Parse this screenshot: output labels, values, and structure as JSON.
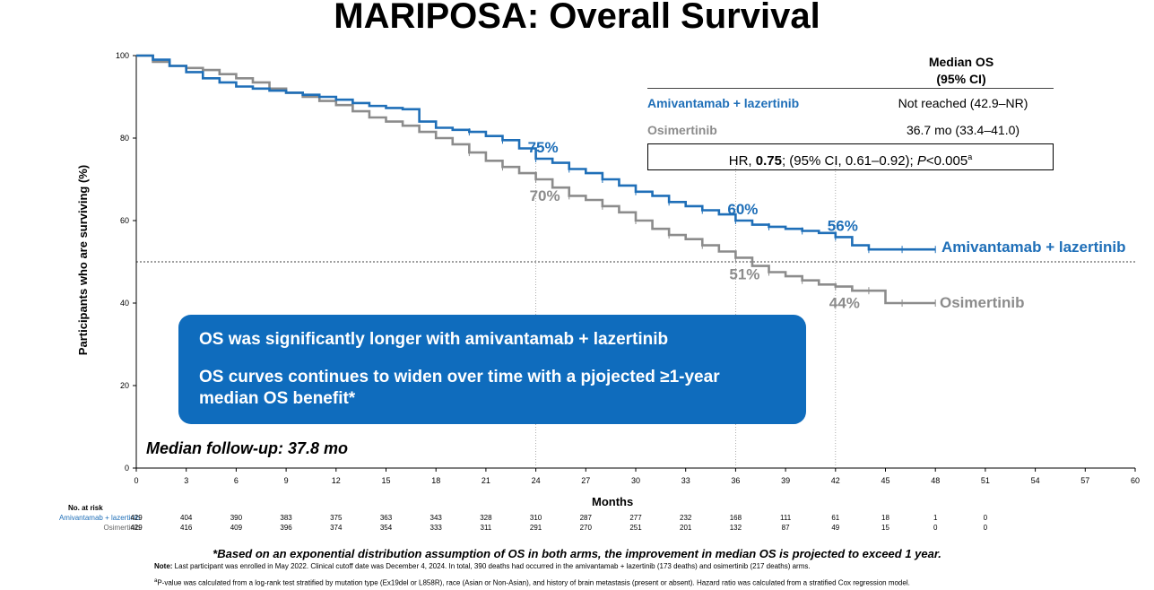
{
  "title": "MARIPOSA: Overall Survival",
  "chart_data": {
    "type": "line",
    "title": "MARIPOSA: Overall Survival",
    "xlabel": "Months",
    "ylabel": "Participants who are surviving (%)",
    "xlim": [
      0,
      60
    ],
    "ylim": [
      0,
      100
    ],
    "xticks": [
      0,
      3,
      6,
      9,
      12,
      15,
      18,
      21,
      24,
      27,
      30,
      33,
      36,
      39,
      42,
      45,
      48,
      51,
      54,
      57,
      60
    ],
    "yticks": [
      0,
      20,
      40,
      60,
      80,
      100
    ],
    "reference_line_y": 50,
    "guide_lines_x": [
      24,
      36,
      42
    ],
    "series": [
      {
        "name": "Amivantamab + lazertinib",
        "color": "#1f6fb8",
        "x": [
          0,
          1,
          2,
          3,
          4,
          5,
          6,
          7,
          8,
          9,
          10,
          11,
          12,
          13,
          14,
          15,
          16,
          17,
          18,
          19,
          20,
          21,
          22,
          23,
          24,
          25,
          26,
          27,
          28,
          29,
          30,
          31,
          32,
          33,
          34,
          35,
          36,
          37,
          38,
          39,
          40,
          41,
          42,
          43,
          44,
          45,
          46,
          47,
          48
        ],
        "y": [
          100,
          99,
          97.5,
          96,
          94.5,
          93.5,
          92.5,
          92,
          91.5,
          91,
          90.5,
          90,
          89.3,
          88.5,
          87.8,
          87.3,
          87,
          84,
          82.5,
          82,
          81.5,
          80.5,
          79.5,
          77.5,
          75,
          74,
          72.5,
          71.5,
          70,
          68.5,
          67,
          66,
          64.5,
          63.5,
          62.5,
          61.5,
          60,
          59,
          58.5,
          58,
          57.5,
          57,
          56,
          54,
          53,
          53,
          53,
          53,
          53
        ]
      },
      {
        "name": "Osimertinib",
        "color": "#8c8c8c",
        "x": [
          0,
          1,
          2,
          3,
          4,
          5,
          6,
          7,
          8,
          9,
          10,
          11,
          12,
          13,
          14,
          15,
          16,
          17,
          18,
          19,
          20,
          21,
          22,
          23,
          24,
          25,
          26,
          27,
          28,
          29,
          30,
          31,
          32,
          33,
          34,
          35,
          36,
          37,
          38,
          39,
          40,
          41,
          42,
          43,
          44,
          45,
          46,
          47,
          48
        ],
        "y": [
          100,
          98.5,
          97.5,
          97,
          96.5,
          95.5,
          94.5,
          93.5,
          92,
          91,
          90,
          89,
          88,
          86.5,
          85,
          84,
          83,
          81.5,
          80,
          78.5,
          76.5,
          74.5,
          73,
          71.5,
          70,
          68,
          66,
          65,
          63.5,
          62,
          60,
          58,
          56.5,
          55.5,
          54,
          52.5,
          51,
          49,
          47.5,
          46.5,
          45.5,
          44.5,
          44,
          43,
          43,
          40,
          40,
          40,
          40
        ]
      }
    ],
    "annotations": [
      {
        "text": "75%",
        "series": "Amivantamab + lazertinib",
        "x": 24,
        "y": 75
      },
      {
        "text": "70%",
        "series": "Osimertinib",
        "x": 24,
        "y": 70
      },
      {
        "text": "60%",
        "series": "Amivantamab + lazertinib",
        "x": 36,
        "y": 60
      },
      {
        "text": "51%",
        "series": "Osimertinib",
        "x": 36,
        "y": 51
      },
      {
        "text": "56%",
        "series": "Amivantamab + lazertinib",
        "x": 42,
        "y": 56
      },
      {
        "text": "44%",
        "series": "Osimertinib",
        "x": 42,
        "y": 44
      }
    ],
    "number_at_risk": {
      "title": "No. at risk",
      "months": [
        0,
        3,
        6,
        9,
        12,
        15,
        18,
        21,
        24,
        27,
        30,
        33,
        36,
        39,
        42,
        45,
        48,
        51
      ],
      "rows": [
        {
          "label": "Amivantamab + lazertinib",
          "color": "#1f6fb8",
          "values": [
            "429",
            "404",
            "390",
            "383",
            "375",
            "363",
            "343",
            "328",
            "310",
            "287",
            "277",
            "232",
            "168",
            "111",
            "61",
            "18",
            "1",
            "0"
          ]
        },
        {
          "label": "Osimertinib",
          "color": "#8c8c8c",
          "values": [
            "429",
            "416",
            "409",
            "396",
            "374",
            "354",
            "333",
            "311",
            "291",
            "270",
            "251",
            "201",
            "132",
            "87",
            "49",
            "15",
            "0",
            "0"
          ]
        }
      ]
    }
  },
  "median_table": {
    "header_line1": "Median OS",
    "header_line2": "(95% CI)",
    "rows": [
      {
        "name": "Amivantamab + lazertinib",
        "value": "Not reached (42.9–NR)",
        "color": "#1f6fb8"
      },
      {
        "name": "Osimertinib",
        "value": "36.7 mo (33.4–41.0)",
        "color": "#8c8c8c"
      }
    ],
    "hr_prefix": "HR, ",
    "hr_value": "0.75",
    "hr_middle": "; (95% CI, 0.61–0.92); ",
    "hr_p": "P",
    "hr_p_value": "<0.005",
    "hr_sup": "a"
  },
  "callout": {
    "line1": "OS was significantly longer with amivantamab + lazertinib",
    "line2": "OS curves continues to widen over time with a pjojected ≥1-year median OS benefit*",
    "color": "#0f6cbd"
  },
  "followup": "Median follow-up: 37.8 mo",
  "footnotes": {
    "main": "*Based on an exponential distribution assumption of OS in both arms, the improvement in median OS is projected to exceed 1 year.",
    "note_label": "Note:",
    "note_text": " Last participant was enrolled in May 2022. Clinical cutoff date was December 4, 2024. In total, 390 deaths had occurred in the amivantamab + lazertinib (173 deaths) and osimertinib (217 deaths) arms.",
    "pvalue_sup": "a",
    "pvalue_text": "P-value was calculated from a log-rank test stratified by mutation type (Ex19del or L858R), race (Asian or Non-Asian), and history of brain metastasis (present or absent). Hazard ratio was calculated from a stratified Cox regression model."
  }
}
